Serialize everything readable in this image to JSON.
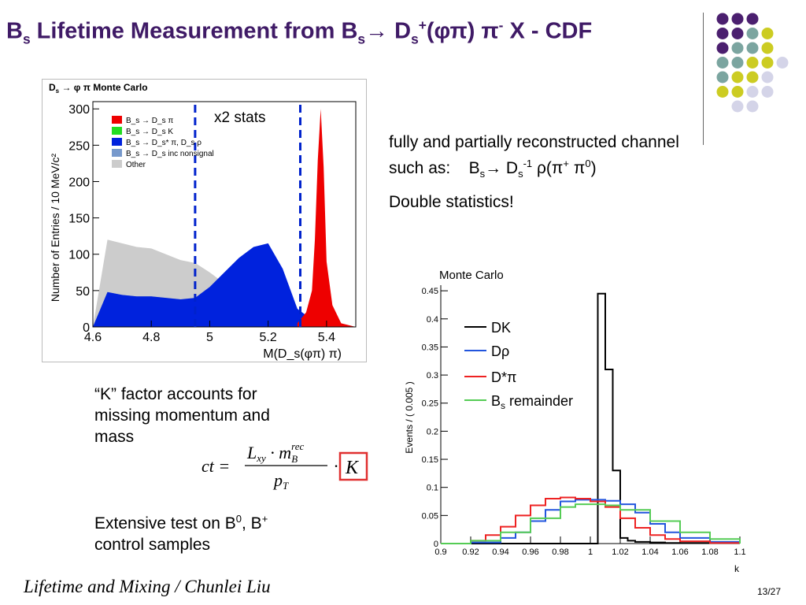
{
  "slide": {
    "title": {
      "pre": "B",
      "sub1": "s",
      "mid": " Lifetime Measurement from B",
      "sub2": "s",
      "arrow": "→ D",
      "sub3": "s",
      "sup3": "+",
      "paren": "(φπ) π",
      "sup4": "-",
      "post": " X - CDF"
    },
    "bullets": {
      "channel_line1": "fully and partially reconstructed channel",
      "channel_line2_a": "such as:",
      "channel_line2_b": "B",
      "channel_line2_bsub": "s",
      "channel_line2_c": "→ D",
      "channel_line2_csub": "s",
      "channel_line2_csup": "-1",
      "channel_line2_d": " ρ(π",
      "channel_line2_dsup": "+",
      "channel_line2_e": " π",
      "channel_line2_esup": "0",
      "channel_line2_f": ")",
      "double_stats": "Double statistics!",
      "kfactor_1": "“K” factor accounts for",
      "kfactor_2": "missing momentum and",
      "kfactor_3": "mass",
      "extensive_1a": "Extensive test on B",
      "extensive_1a_sup": "0",
      "extensive_1b": ", B",
      "extensive_1b_sup": "+",
      "extensive_2": "control samples"
    },
    "formula": {
      "lhs": "ct =",
      "num_a": "L",
      "num_a_sub": "xy",
      "num_b": " · m",
      "num_b_sub": "B",
      "num_b_sup": "rec",
      "den": "p",
      "den_sub": "T",
      "times": "·",
      "K": "K"
    },
    "footer": "Lifetime and Mixing / Chunlei Liu",
    "page_number": "13/27",
    "colors": {
      "title": "#3f1a66",
      "purple": "#4b1f6f",
      "teal": "#7ba5a0",
      "yellow": "#cccc22",
      "lavender": "#d4d4e8"
    }
  },
  "chart_data": [
    {
      "type": "area",
      "title": "D_s → φ π Monte Carlo",
      "title_parts": {
        "a": "D",
        "a_sub": "s",
        "b": " → φ π Monte Carlo"
      },
      "xlabel": "M(D_s(φπ) π)",
      "ylabel": "Number of Entries / 10 MeV/c²",
      "annotation": "x2 stats",
      "xlim": [
        4.6,
        5.5
      ],
      "ylim": [
        0,
        310
      ],
      "xticks": [
        "4.6",
        "4.8",
        "5",
        "5.2",
        "5.4"
      ],
      "yticks": [
        "0",
        "50",
        "100",
        "150",
        "200",
        "250",
        "300"
      ],
      "window_lines_x": [
        4.95,
        5.31
      ],
      "legend": [
        {
          "label": "B_s → D_s π",
          "color": "#ee0000"
        },
        {
          "label": "B_s → D_s K",
          "color": "#22dd22"
        },
        {
          "label": "B_s → D_s* π, D_s ρ",
          "color": "#0022dd"
        },
        {
          "label": "B_s → D_s inc nonsignal",
          "color": "#7799cc"
        },
        {
          "label": "Other",
          "color": "#cccccc"
        }
      ],
      "series": [
        {
          "name": "Other",
          "x": [
            4.6,
            4.65,
            4.7,
            4.75,
            4.8,
            4.85,
            4.9,
            4.95,
            5.0,
            5.05,
            5.1,
            5.15,
            5.2,
            5.25,
            5.3,
            5.35,
            5.4,
            5.45,
            5.5
          ],
          "values": [
            0,
            120,
            115,
            110,
            108,
            100,
            92,
            88,
            75,
            60,
            50,
            40,
            30,
            20,
            10,
            5,
            2,
            0,
            0
          ]
        },
        {
          "name": "B_s → D_s inc nonsignal",
          "x": [
            4.6,
            4.65,
            4.7,
            4.75,
            4.8,
            4.85,
            4.9,
            4.95,
            5.0,
            5.05,
            5.1,
            5.15,
            5.2,
            5.25,
            5.3,
            5.35,
            5.4,
            5.45,
            5.5
          ],
          "values": [
            0,
            48,
            44,
            42,
            42,
            40,
            38,
            38,
            36,
            32,
            28,
            24,
            20,
            15,
            8,
            4,
            2,
            0,
            0
          ]
        },
        {
          "name": "B_s → D_s* π, D_s ρ",
          "x": [
            4.6,
            4.65,
            4.7,
            4.75,
            4.8,
            4.85,
            4.9,
            4.95,
            5.0,
            5.05,
            5.1,
            5.15,
            5.2,
            5.25,
            5.3,
            5.35,
            5.4,
            5.45,
            5.5
          ],
          "values": [
            0,
            48,
            44,
            42,
            42,
            40,
            38,
            40,
            55,
            75,
            95,
            110,
            115,
            80,
            25,
            10,
            3,
            0,
            0
          ]
        },
        {
          "name": "B_s → D_s K",
          "x": [
            5.3,
            5.33,
            5.36,
            5.39,
            5.42,
            5.45
          ],
          "values": [
            0,
            10,
            14,
            10,
            4,
            0
          ]
        },
        {
          "name": "B_s → D_s π",
          "x": [
            5.3,
            5.33,
            5.35,
            5.36,
            5.37,
            5.38,
            5.39,
            5.4,
            5.42,
            5.45,
            5.5
          ],
          "values": [
            5,
            20,
            50,
            120,
            230,
            300,
            220,
            90,
            30,
            5,
            0
          ]
        }
      ]
    },
    {
      "type": "line",
      "title": "Monte Carlo",
      "xlabel": "k",
      "ylabel": "Events / ( 0.005 )",
      "xlim": [
        0.9,
        1.1
      ],
      "ylim": [
        0,
        0.46
      ],
      "xticks": [
        "0.9",
        "0.92",
        "0.94",
        "0.96",
        "0.98",
        "1",
        "1.02",
        "1.04",
        "1.06",
        "1.08",
        "1.1"
      ],
      "yticks": [
        "0",
        "0.05",
        "0.1",
        "0.15",
        "0.2",
        "0.25",
        "0.3",
        "0.35",
        "0.4",
        "0.45"
      ],
      "legend": [
        {
          "label": "DK",
          "color": "#000000"
        },
        {
          "label": "Dρ",
          "color": "#2255dd"
        },
        {
          "label": "D*π",
          "color": "#ee2222"
        },
        {
          "label": "B_s remainder",
          "color": "#55cc55"
        }
      ],
      "legend_parts": {
        "dk": "DK",
        "drho": "Dρ",
        "dstarpi": "D*π",
        "bs_a": "B",
        "bs_sub": "s",
        "bs_b": " remainder"
      },
      "series": [
        {
          "name": "DK",
          "x": [
            0.9,
            0.995,
            1.0,
            1.005,
            1.01,
            1.015,
            1.02,
            1.025,
            1.03,
            1.04,
            1.05,
            1.1
          ],
          "values": [
            0,
            0,
            0,
            0.445,
            0.31,
            0.13,
            0.01,
            0.005,
            0.003,
            0.002,
            0.001,
            0
          ]
        },
        {
          "name": "Dρ",
          "x": [
            0.9,
            0.92,
            0.94,
            0.95,
            0.96,
            0.97,
            0.98,
            0.99,
            1.0,
            1.01,
            1.02,
            1.03,
            1.04,
            1.05,
            1.06,
            1.08,
            1.1
          ],
          "values": [
            0,
            0.002,
            0.01,
            0.02,
            0.04,
            0.06,
            0.075,
            0.078,
            0.078,
            0.076,
            0.07,
            0.055,
            0.035,
            0.02,
            0.01,
            0.003,
            0
          ]
        },
        {
          "name": "D*π",
          "x": [
            0.9,
            0.92,
            0.93,
            0.94,
            0.95,
            0.96,
            0.97,
            0.98,
            0.99,
            1.0,
            1.01,
            1.02,
            1.03,
            1.04,
            1.05,
            1.06,
            1.08,
            1.1
          ],
          "values": [
            0,
            0.005,
            0.015,
            0.03,
            0.05,
            0.068,
            0.08,
            0.082,
            0.08,
            0.075,
            0.065,
            0.045,
            0.028,
            0.015,
            0.008,
            0.004,
            0.001,
            0
          ]
        },
        {
          "name": "B_s remainder",
          "x": [
            0.9,
            0.92,
            0.94,
            0.96,
            0.98,
            0.99,
            1.0,
            1.01,
            1.02,
            1.04,
            1.06,
            1.08,
            1.1
          ],
          "values": [
            0,
            0.005,
            0.02,
            0.045,
            0.065,
            0.07,
            0.07,
            0.068,
            0.06,
            0.04,
            0.02,
            0.008,
            0
          ]
        }
      ]
    }
  ]
}
